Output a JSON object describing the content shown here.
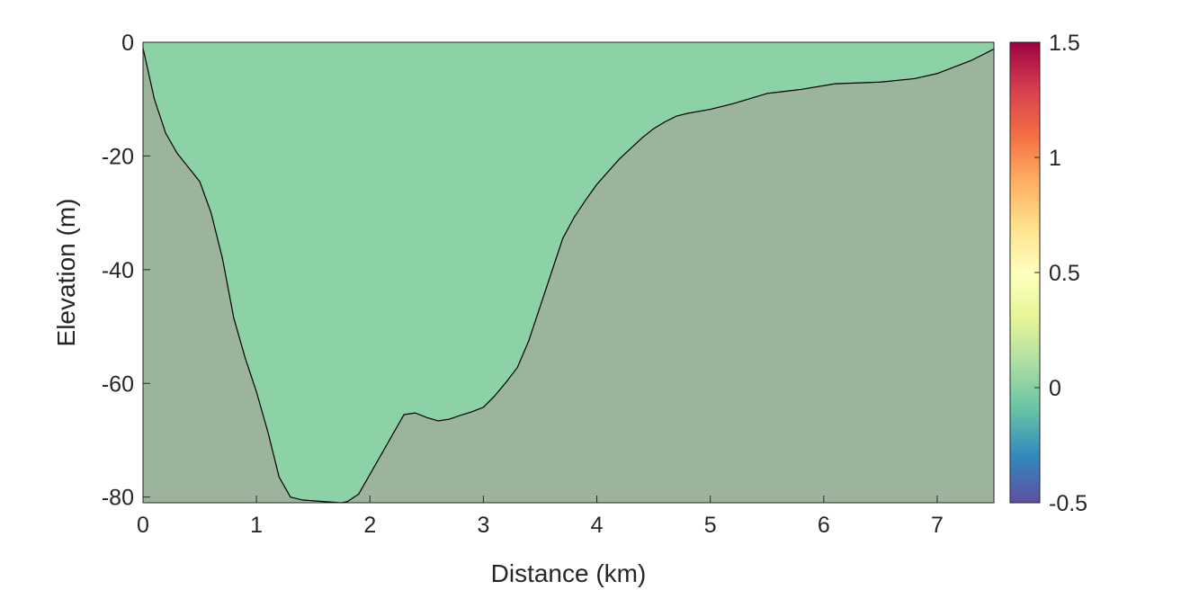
{
  "chart_data": {
    "type": "area",
    "title": "",
    "xlabel": "Distance (km)",
    "ylabel": "Elevation (m)",
    "xlim": [
      0,
      7.5
    ],
    "ylim": [
      -81,
      0
    ],
    "x_ticks": [
      0,
      1,
      2,
      3,
      4,
      5,
      6,
      7
    ],
    "y_ticks": [
      0,
      -20,
      -40,
      -60,
      -80
    ],
    "grid": false,
    "water_color": "#8CD2A6",
    "bed_color": "#9BB49B",
    "line_color": "#000000",
    "bed_profile": {
      "x": [
        0,
        0.1,
        0.2,
        0.3,
        0.5,
        0.6,
        0.7,
        0.8,
        0.9,
        1.0,
        1.1,
        1.2,
        1.3,
        1.4,
        1.6,
        1.75,
        1.8,
        1.9,
        2.0,
        2.1,
        2.2,
        2.3,
        2.4,
        2.5,
        2.6,
        2.7,
        2.8,
        2.9,
        3.0,
        3.1,
        3.2,
        3.3,
        3.4,
        3.5,
        3.6,
        3.7,
        3.8,
        3.9,
        4.0,
        4.2,
        4.4,
        4.5,
        4.6,
        4.7,
        4.8,
        5.0,
        5.2,
        5.5,
        5.8,
        6.1,
        6.5,
        6.8,
        7.0,
        7.3,
        7.5
      ],
      "y": [
        -1,
        -10,
        -16,
        -19.5,
        -24.5,
        -30,
        -38,
        -48.5,
        -55.5,
        -61.5,
        -68.5,
        -76.5,
        -80,
        -80.5,
        -80.8,
        -81,
        -80.8,
        -79.5,
        -76,
        -72.5,
        -69,
        -65.5,
        -65.2,
        -66,
        -66.6,
        -66.3,
        -65.6,
        -65,
        -64.2,
        -62.2,
        -59.8,
        -57.2,
        -52.5,
        -46.5,
        -40.5,
        -34.5,
        -30.8,
        -27.8,
        -25,
        -20.5,
        -16.8,
        -15.2,
        -14,
        -13,
        -12.5,
        -11.8,
        -10.8,
        -9,
        -8.3,
        -7.3,
        -7,
        -6.4,
        -5.5,
        -3.2,
        -1.2
      ]
    },
    "colorbar": {
      "colormap": "spectral",
      "limits": [
        -0.5,
        1.5
      ],
      "ticks": [
        "1.5",
        "1",
        "0.5",
        "0",
        "-0.5"
      ],
      "tick_values": [
        1.5,
        1,
        0.5,
        0,
        -0.5
      ],
      "stops": [
        "#5E4FA2",
        "#3288BD",
        "#66C2A5",
        "#ABDDA4",
        "#E6F598",
        "#FFFFBF",
        "#FEE08B",
        "#FDAE61",
        "#F46D43",
        "#D53E4F",
        "#9E0142"
      ]
    }
  }
}
